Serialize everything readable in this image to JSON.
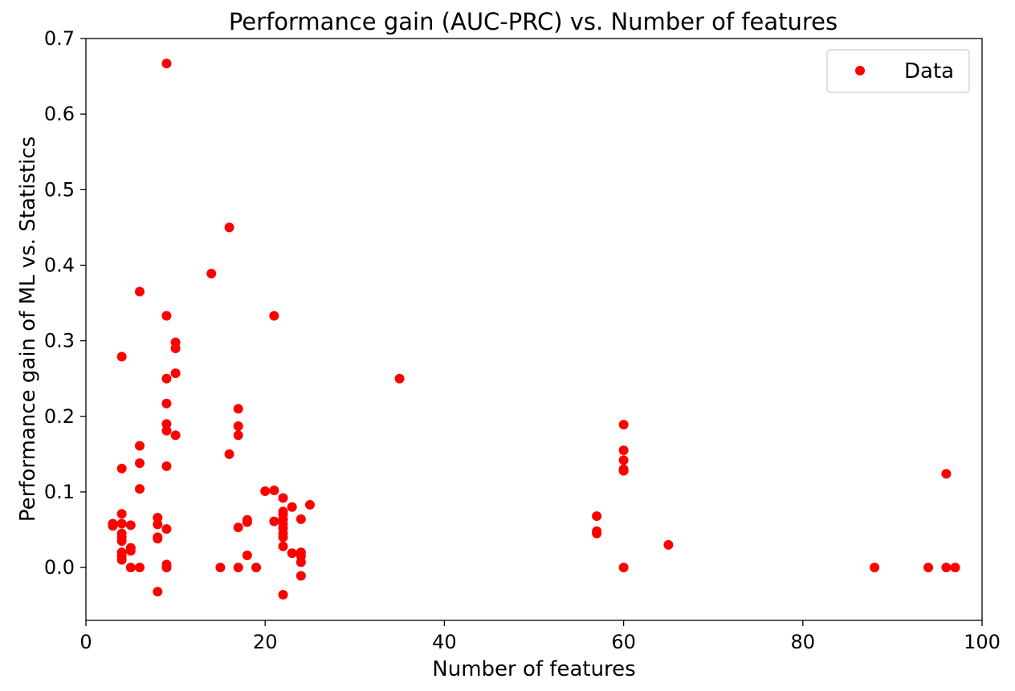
{
  "chart_data": {
    "type": "scatter",
    "title": "Performance gain (AUC-PRC) vs. Number of features",
    "xlabel": "Number of features",
    "ylabel": "Performance gain of ML vs. Statistics",
    "xlim": [
      0,
      100
    ],
    "ylim": [
      -0.07,
      0.7
    ],
    "xticks": [
      0,
      20,
      40,
      60,
      80,
      100
    ],
    "xtick_labels": [
      "0",
      "20",
      "40",
      "60",
      "80",
      "100"
    ],
    "yticks": [
      0.0,
      0.1,
      0.2,
      0.3,
      0.4,
      0.5,
      0.6,
      0.7
    ],
    "ytick_labels": [
      "0.0",
      "0.1",
      "0.2",
      "0.3",
      "0.4",
      "0.5",
      "0.6",
      "0.7"
    ],
    "grid": false,
    "legend": {
      "position": "top-right",
      "entries": [
        "Data"
      ]
    },
    "series": [
      {
        "name": "Data",
        "color": "#ff0000",
        "marker": "circle",
        "points": [
          [
            3,
            0.058
          ],
          [
            3,
            0.055
          ],
          [
            4,
            0.279
          ],
          [
            4,
            0.131
          ],
          [
            4,
            0.071
          ],
          [
            4,
            0.058
          ],
          [
            4,
            0.045
          ],
          [
            4,
            0.04
          ],
          [
            4,
            0.035
          ],
          [
            4,
            0.02
          ],
          [
            4,
            0.015
          ],
          [
            4,
            0.01
          ],
          [
            5,
            0.056
          ],
          [
            5,
            0.026
          ],
          [
            5,
            0.022
          ],
          [
            5,
            0.0
          ],
          [
            6,
            0.365
          ],
          [
            6,
            0.161
          ],
          [
            6,
            0.138
          ],
          [
            6,
            0.104
          ],
          [
            6,
            0.0
          ],
          [
            8,
            0.066
          ],
          [
            8,
            0.057
          ],
          [
            8,
            0.04
          ],
          [
            8,
            0.038
          ],
          [
            8,
            -0.032
          ],
          [
            9,
            0.667
          ],
          [
            9,
            0.333
          ],
          [
            9,
            0.25
          ],
          [
            9,
            0.217
          ],
          [
            9,
            0.19
          ],
          [
            9,
            0.181
          ],
          [
            9,
            0.134
          ],
          [
            9,
            0.051
          ],
          [
            9,
            0.004
          ],
          [
            9,
            0.0
          ],
          [
            10,
            0.298
          ],
          [
            10,
            0.29
          ],
          [
            10,
            0.257
          ],
          [
            10,
            0.175
          ],
          [
            14,
            0.389
          ],
          [
            15,
            0.0
          ],
          [
            16,
            0.45
          ],
          [
            16,
            0.15
          ],
          [
            17,
            0.21
          ],
          [
            17,
            0.187
          ],
          [
            17,
            0.175
          ],
          [
            17,
            0.053
          ],
          [
            17,
            0.0
          ],
          [
            18,
            0.063
          ],
          [
            18,
            0.06
          ],
          [
            18,
            0.016
          ],
          [
            19,
            0.0
          ],
          [
            20,
            0.101
          ],
          [
            21,
            0.333
          ],
          [
            21,
            0.102
          ],
          [
            21,
            0.061
          ],
          [
            22,
            0.092
          ],
          [
            22,
            0.074
          ],
          [
            22,
            0.07
          ],
          [
            22,
            0.064
          ],
          [
            22,
            0.058
          ],
          [
            22,
            0.052
          ],
          [
            22,
            0.045
          ],
          [
            22,
            0.04
          ],
          [
            22,
            0.028
          ],
          [
            22,
            -0.036
          ],
          [
            23,
            0.08
          ],
          [
            23,
            0.019
          ],
          [
            24,
            0.064
          ],
          [
            24,
            0.02
          ],
          [
            24,
            0.015
          ],
          [
            24,
            0.007
          ],
          [
            24,
            -0.011
          ],
          [
            25,
            0.083
          ],
          [
            35,
            0.25
          ],
          [
            57,
            0.068
          ],
          [
            57,
            0.048
          ],
          [
            57,
            0.045
          ],
          [
            60,
            0.189
          ],
          [
            60,
            0.155
          ],
          [
            60,
            0.142
          ],
          [
            60,
            0.13
          ],
          [
            60,
            0.128
          ],
          [
            60,
            0.0
          ],
          [
            65,
            0.03
          ],
          [
            88,
            0.0
          ],
          [
            94,
            0.0
          ],
          [
            96,
            0.124
          ],
          [
            96,
            0.0
          ],
          [
            97,
            0.0
          ]
        ]
      }
    ]
  }
}
